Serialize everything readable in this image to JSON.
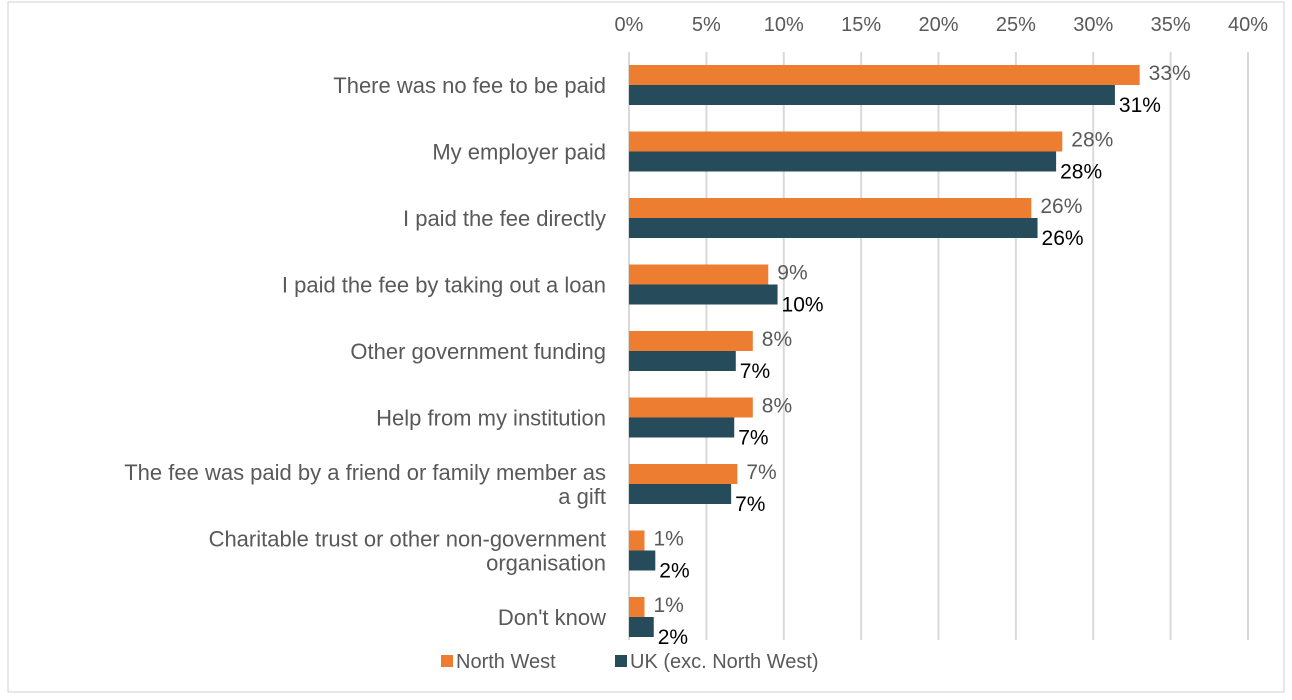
{
  "chart_data": {
    "type": "bar",
    "orientation": "horizontal",
    "title": "",
    "xlabel": "",
    "ylabel": "",
    "xlim": [
      0,
      40
    ],
    "x_ticks": [
      0,
      5,
      10,
      15,
      20,
      25,
      30,
      35,
      40
    ],
    "x_tick_labels": [
      "0%",
      "5%",
      "10%",
      "15%",
      "20%",
      "25%",
      "30%",
      "35%",
      "40%"
    ],
    "x_axis_position": "top",
    "grid": true,
    "legend_position": "bottom",
    "categories": [
      [
        "There was no fee to be paid"
      ],
      [
        "My employer paid"
      ],
      [
        "I paid the fee directly"
      ],
      [
        "I paid the fee by taking out a loan"
      ],
      [
        "Other government funding"
      ],
      [
        "Help from my institution"
      ],
      [
        "The fee was paid by a friend or family member as",
        "a gift"
      ],
      [
        "Charitable trust or other non-government",
        "organisation"
      ],
      [
        "Don't know"
      ]
    ],
    "series": [
      {
        "name": "North West",
        "color": "#ED7D31",
        "values": [
          33,
          28,
          26,
          9,
          8,
          8,
          7,
          1,
          1
        ],
        "value_labels": [
          "33%",
          "28%",
          "26%",
          "9%",
          "8%",
          "8%",
          "7%",
          "1%",
          "1%"
        ]
      },
      {
        "name": "UK (exc. North West)",
        "color": "#264B5A",
        "values": [
          31.4,
          27.6,
          26.4,
          9.6,
          6.9,
          6.8,
          6.6,
          1.7,
          1.6
        ],
        "value_labels": [
          "31%",
          "28%",
          "26%",
          "10%",
          "7%",
          "7%",
          "7%",
          "2%",
          "2%"
        ]
      }
    ]
  }
}
